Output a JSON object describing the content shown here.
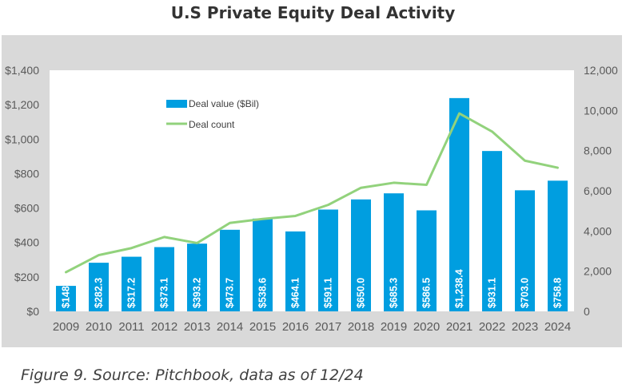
{
  "page": {
    "title": "U.S Private Equity Deal Activity",
    "caption": "Figure 9. Source: Pitchbook, data as of 12/24"
  },
  "colors": {
    "bar": "#009ee0",
    "line": "#92d27c",
    "panel": "#d9d9d9",
    "plot": "#ffffff",
    "axis_text": "#595959"
  },
  "chart_data": {
    "type": "bar",
    "title": "U.S Private Equity Deal Activity",
    "categories": [
      "2009",
      "2010",
      "2011",
      "2012",
      "2013",
      "2014",
      "2015",
      "2016",
      "2017",
      "2018",
      "2019",
      "2020",
      "2021",
      "2022",
      "2023",
      "2024"
    ],
    "series": [
      {
        "name": "Deal value ($Bil)",
        "type": "bar",
        "axis": "left",
        "values": [
          148,
          282.3,
          317.2,
          373.1,
          393.2,
          473.7,
          538.6,
          464.1,
          591.1,
          650.0,
          685.3,
          586.5,
          1238.4,
          931.1,
          703.0,
          758.8
        ],
        "labels": [
          "$148",
          "$282.3",
          "$317.2",
          "$373.1",
          "$393.2",
          "$473.7",
          "$538.6",
          "$464.1",
          "$591.1",
          "$650.0",
          "$685.3",
          "$586.5",
          "$1,238.4",
          "$931.1",
          "$703.0",
          "$758.8"
        ]
      },
      {
        "name": "Deal count",
        "type": "line",
        "axis": "right",
        "values": [
          1950,
          2800,
          3150,
          3700,
          3400,
          4400,
          4600,
          4750,
          5300,
          6150,
          6400,
          6300,
          9850,
          8950,
          7500,
          7150
        ]
      }
    ],
    "y_left": {
      "lim": [
        0,
        1400
      ],
      "ticks": [
        0,
        200,
        400,
        600,
        800,
        1000,
        1200,
        1400
      ],
      "tick_labels": [
        "$0",
        "$200",
        "$400",
        "$600",
        "$800",
        "$1,000",
        "$1,200",
        "$1,400"
      ]
    },
    "y_right": {
      "lim": [
        0,
        12000
      ],
      "ticks": [
        0,
        2000,
        4000,
        6000,
        8000,
        10000,
        12000
      ],
      "tick_labels": [
        "0",
        "2,000",
        "4,000",
        "6,000",
        "8,000",
        "10,000",
        "12,000"
      ]
    },
    "grid": false,
    "legend": "top-left, inside plot"
  }
}
